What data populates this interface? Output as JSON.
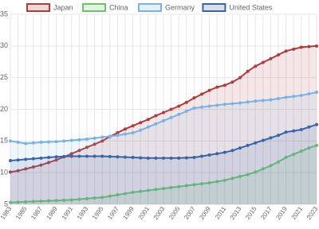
{
  "chart_data": {
    "type": "line",
    "fill": true,
    "categories": [
      "1983",
      null,
      "1985",
      null,
      "1987",
      null,
      "1989",
      null,
      "1991",
      null,
      "1993",
      null,
      "1995",
      null,
      "1997",
      null,
      "1999",
      null,
      "2001",
      null,
      "2003",
      null,
      "2005",
      null,
      "2007",
      null,
      "2009",
      null,
      "2011",
      null,
      "2013",
      null,
      "2015",
      null,
      "2017",
      null,
      "2019",
      null,
      "2021",
      null,
      "2023"
    ],
    "series": [
      {
        "name": "Japan",
        "color": "#b03a3e",
        "values": [
          10.1,
          10.3,
          10.6,
          10.9,
          11.2,
          11.6,
          12.0,
          12.5,
          13.0,
          13.5,
          14.0,
          14.5,
          15.0,
          15.7,
          16.3,
          16.9,
          17.4,
          17.9,
          18.4,
          19.0,
          19.5,
          20.0,
          20.5,
          21.1,
          21.8,
          22.4,
          23.0,
          23.5,
          23.8,
          24.3,
          25.0,
          26.0,
          26.8,
          27.4,
          28.0,
          28.6,
          29.2,
          29.5,
          29.8,
          29.9,
          30.0
        ]
      },
      {
        "name": "China",
        "color": "#6cc26a",
        "values": [
          5.3,
          5.35,
          5.4,
          5.45,
          5.5,
          5.55,
          5.6,
          5.65,
          5.7,
          5.8,
          5.9,
          6.0,
          6.1,
          6.3,
          6.5,
          6.7,
          6.9,
          7.05,
          7.2,
          7.35,
          7.5,
          7.65,
          7.8,
          7.95,
          8.1,
          8.25,
          8.4,
          8.6,
          8.8,
          9.1,
          9.4,
          9.7,
          10.1,
          10.6,
          11.1,
          11.7,
          12.4,
          12.9,
          13.4,
          13.9,
          14.3
        ]
      },
      {
        "name": "Germany",
        "color": "#78b3e8",
        "values": [
          15.0,
          14.8,
          14.6,
          14.7,
          14.8,
          14.85,
          14.9,
          15.0,
          15.1,
          15.2,
          15.3,
          15.45,
          15.6,
          15.75,
          15.9,
          16.1,
          16.3,
          16.7,
          17.2,
          17.7,
          18.2,
          18.7,
          19.2,
          19.7,
          20.2,
          20.35,
          20.5,
          20.65,
          20.8,
          20.9,
          21.0,
          21.15,
          21.3,
          21.4,
          21.5,
          21.7,
          21.9,
          22.05,
          22.2,
          22.45,
          22.7
        ]
      },
      {
        "name": "United States",
        "color": "#3a64a8",
        "values": [
          11.9,
          12.0,
          12.1,
          12.2,
          12.3,
          12.4,
          12.5,
          12.55,
          12.6,
          12.6,
          12.6,
          12.6,
          12.6,
          12.55,
          12.5,
          12.45,
          12.4,
          12.35,
          12.3,
          12.3,
          12.3,
          12.3,
          12.3,
          12.35,
          12.4,
          12.6,
          12.8,
          13.0,
          13.2,
          13.5,
          13.9,
          14.3,
          14.7,
          15.1,
          15.5,
          15.9,
          16.4,
          16.6,
          16.8,
          17.2,
          17.6
        ]
      }
    ],
    "ylim": [
      5,
      35
    ],
    "yticks": [
      5,
      10,
      15,
      20,
      25,
      30,
      35
    ],
    "grid": true,
    "legend": "top"
  }
}
